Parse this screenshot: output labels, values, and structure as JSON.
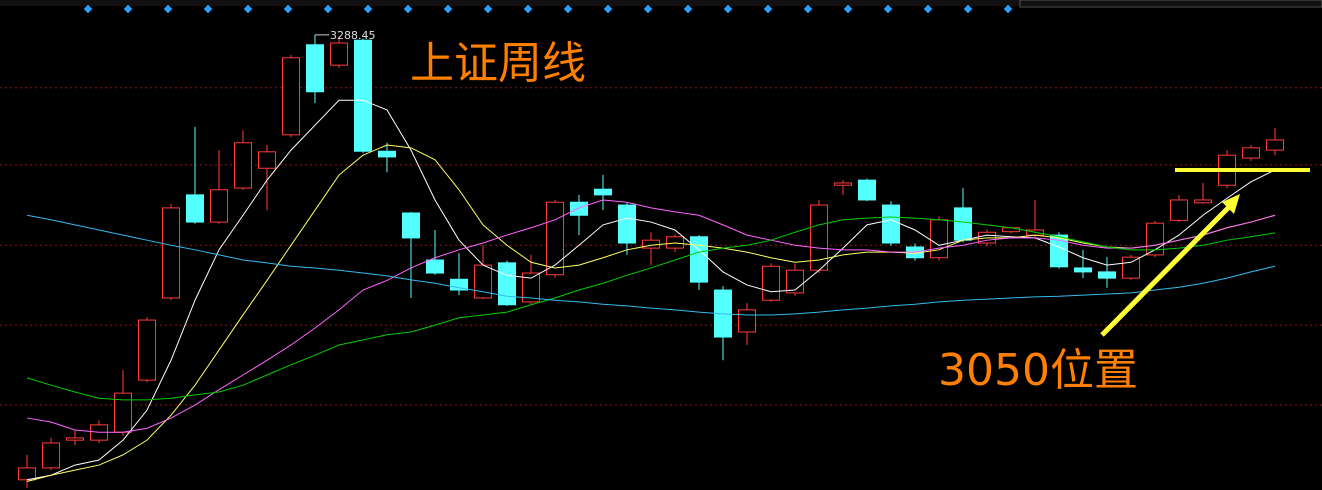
{
  "chart_data": {
    "type": "candlestick",
    "title": "上证周线",
    "annotation": "3050位置",
    "reference_level": 3050,
    "high_label": "3288.45",
    "ylim": [
      2485,
      3350
    ],
    "grid_levels": [
      3195,
      3059,
      2917,
      2776,
      2635
    ],
    "up_color": "#ff3b3b",
    "down_color": "#54ffff",
    "open": [
      2503,
      2524,
      2573,
      2573,
      2587,
      2679,
      2824,
      3006,
      2958,
      3018,
      3053,
      3112,
      3271,
      3235,
      3279,
      3083,
      2974,
      2891,
      2857,
      2824,
      2886,
      2817,
      2865,
      2993,
      3016,
      2988,
      2912,
      2912,
      2932,
      2838,
      2764,
      2820,
      2833,
      2873,
      3023,
      3032,
      2988,
      2914,
      2895,
      2983,
      2921,
      2941,
      2935,
      2935,
      2877,
      2870,
      2859,
      2900,
      2961,
      2992,
      3023,
      3071,
      3085
    ],
    "high": [
      2547,
      2577,
      2591,
      2608,
      2697,
      2790,
      2990,
      3126,
      3085,
      3120,
      3094,
      3253,
      3288.45,
      3285,
      3282,
      3098,
      2976,
      2944,
      2903,
      2917,
      2890,
      2900,
      2997,
      3006,
      3041,
      2992,
      2940,
      2936,
      2935,
      2845,
      2815,
      2885,
      2885,
      2997,
      3032,
      3035,
      2995,
      2920,
      2968,
      3018,
      2945,
      2950,
      2997,
      2940,
      2909,
      2896,
      2900,
      2960,
      3006,
      3027,
      3085,
      3094,
      3124
    ],
    "low": [
      2488,
      2520,
      2564,
      2568,
      2580,
      2675,
      2820,
      2955,
      2955,
      3015,
      2979,
      3108,
      3168,
      3230,
      3080,
      3046,
      2824,
      2865,
      2829,
      2822,
      2810,
      2812,
      2860,
      2935,
      2979,
      2900,
      2882,
      2905,
      2838,
      2714,
      2741,
      2817,
      2828,
      2868,
      3006,
      2995,
      2916,
      2890,
      2890,
      2922,
      2915,
      2938,
      2930,
      2876,
      2859,
      2842,
      2856,
      2896,
      2958,
      2990,
      3018,
      3066,
      3076
    ],
    "close": [
      2524,
      2568,
      2577,
      2600,
      2656,
      2785,
      2983,
      2958,
      3015,
      3098,
      3082,
      3248,
      3188,
      3274,
      3083,
      3073,
      2930,
      2868,
      2838,
      2882,
      2812,
      2868,
      2993,
      2970,
      3006,
      2921,
      2926,
      2932,
      2852,
      2755,
      2803,
      2880,
      2873,
      2988,
      3027,
      2997,
      2921,
      2895,
      2962,
      2926,
      2940,
      2948,
      2944,
      2879,
      2870,
      2859,
      2896,
      2956,
      2997,
      2997,
      3076,
      3089,
      3103
    ],
    "ma_lines": [
      {
        "color": "#ffffff",
        "values": [
          2503,
          2511,
          2529,
          2538,
          2573,
          2626,
          2714,
          2820,
          2909,
          2970,
          3032,
          3085,
          3129,
          3173,
          3173,
          3156,
          3085,
          2997,
          2926,
          2882,
          2864,
          2859,
          2882,
          2917,
          2953,
          2965,
          2958,
          2944,
          2909,
          2870,
          2847,
          2835,
          2838,
          2873,
          2912,
          2953,
          2962,
          2944,
          2917,
          2926,
          2935,
          2932,
          2930,
          2914,
          2895,
          2882,
          2887,
          2909,
          2935,
          2970,
          3000,
          3029,
          3050
        ]
      },
      {
        "color": "#ffff66",
        "values": [
          2500,
          2511,
          2520,
          2529,
          2547,
          2573,
          2617,
          2670,
          2732,
          2794,
          2855,
          2917,
          2979,
          3041,
          3076,
          3094,
          3089,
          3068,
          3015,
          2953,
          2917,
          2887,
          2877,
          2882,
          2895,
          2909,
          2917,
          2921,
          2917,
          2912,
          2905,
          2895,
          2887,
          2891,
          2900,
          2905,
          2905,
          2903,
          2909,
          2926,
          2930,
          2930,
          2935,
          2930,
          2921,
          2914,
          2912,
          2917,
          2926,
          2935,
          2948,
          2958,
          2970
        ]
      },
      {
        "color": "#ff66ff",
        "values": [
          2612,
          2605,
          2591,
          2587,
          2587,
          2594,
          2612,
          2635,
          2662,
          2688,
          2714,
          2741,
          2771,
          2803,
          2838,
          2855,
          2877,
          2895,
          2909,
          2921,
          2935,
          2948,
          2962,
          2983,
          2997,
          2993,
          2983,
          2976,
          2970,
          2953,
          2935,
          2926,
          2917,
          2912,
          2909,
          2909,
          2905,
          2905,
          2912,
          2917,
          2926,
          2930,
          2930,
          2926,
          2917,
          2912,
          2912,
          2917,
          2926,
          2935,
          2948,
          2958,
          2970
        ]
      },
      {
        "color": "#00cc00",
        "values": [
          2683,
          2670,
          2658,
          2647,
          2644,
          2644,
          2647,
          2653,
          2658,
          2670,
          2688,
          2706,
          2723,
          2741,
          2750,
          2759,
          2764,
          2776,
          2789,
          2794,
          2799,
          2812,
          2824,
          2838,
          2850,
          2864,
          2877,
          2891,
          2905,
          2912,
          2917,
          2926,
          2940,
          2953,
          2962,
          2965,
          2967,
          2965,
          2962,
          2958,
          2953,
          2948,
          2940,
          2932,
          2923,
          2914,
          2909,
          2909,
          2912,
          2917,
          2926,
          2932,
          2939
        ]
      },
      {
        "color": "#33bbee",
        "values": [
          2970,
          2962,
          2953,
          2944,
          2935,
          2926,
          2917,
          2909,
          2900,
          2891,
          2886,
          2880,
          2877,
          2873,
          2868,
          2863,
          2856,
          2850,
          2842,
          2835,
          2827,
          2824,
          2820,
          2817,
          2813,
          2810,
          2806,
          2803,
          2799,
          2796,
          2794,
          2794,
          2796,
          2799,
          2803,
          2806,
          2810,
          2813,
          2817,
          2820,
          2822,
          2824,
          2826,
          2827,
          2829,
          2831,
          2833,
          2838,
          2843,
          2850,
          2859,
          2870,
          2880
        ]
      }
    ]
  }
}
